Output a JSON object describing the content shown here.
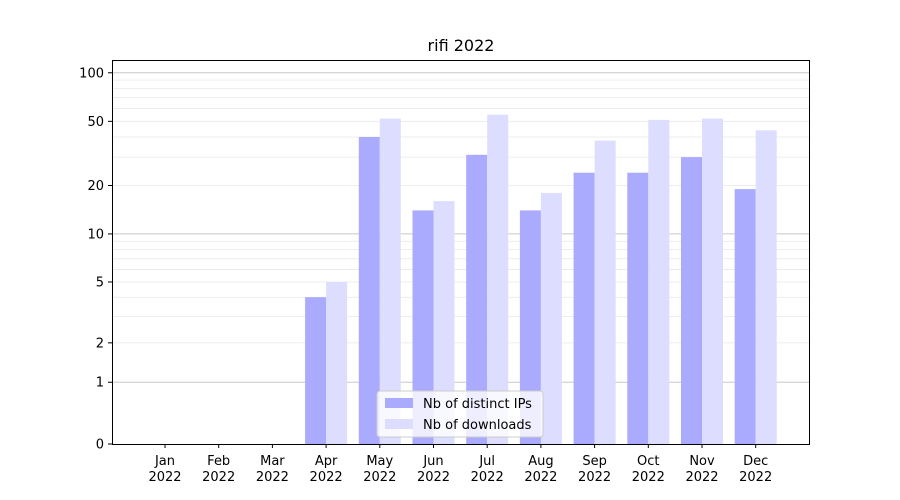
{
  "chart_data": {
    "type": "bar",
    "title": "rifi 2022",
    "xlabel": "",
    "ylabel": "",
    "categories": [
      "Jan\n2022",
      "Feb\n2022",
      "Mar\n2022",
      "Apr\n2022",
      "May\n2022",
      "Jun\n2022",
      "Jul\n2022",
      "Aug\n2022",
      "Sep\n2022",
      "Oct\n2022",
      "Nov\n2022",
      "Dec\n2022"
    ],
    "category_lines": [
      [
        "Jan",
        "2022"
      ],
      [
        "Feb",
        "2022"
      ],
      [
        "Mar",
        "2022"
      ],
      [
        "Apr",
        "2022"
      ],
      [
        "May",
        "2022"
      ],
      [
        "Jun",
        "2022"
      ],
      [
        "Jul",
        "2022"
      ],
      [
        "Aug",
        "2022"
      ],
      [
        "Sep",
        "2022"
      ],
      [
        "Oct",
        "2022"
      ],
      [
        "Nov",
        "2022"
      ],
      [
        "Dec",
        "2022"
      ]
    ],
    "series": [
      {
        "name": "Nb of distinct IPs",
        "color": "#aaaaff",
        "values": [
          0,
          0,
          0,
          4,
          40,
          14,
          31,
          14,
          24,
          24,
          30,
          19
        ]
      },
      {
        "name": "Nb of downloads",
        "color": "#ddddff",
        "values": [
          0,
          0,
          0,
          5,
          52,
          16,
          55,
          18,
          38,
          51,
          52,
          44
        ]
      }
    ],
    "yscale": "symlog",
    "ylim": [
      0,
      120
    ],
    "yticks": [
      0,
      1,
      2,
      5,
      10,
      20,
      50,
      100
    ],
    "ytick_labels": [
      "0",
      "1",
      "2",
      "5",
      "10",
      "20",
      "50",
      "100"
    ],
    "grid": true,
    "legend_position": "lower center"
  }
}
